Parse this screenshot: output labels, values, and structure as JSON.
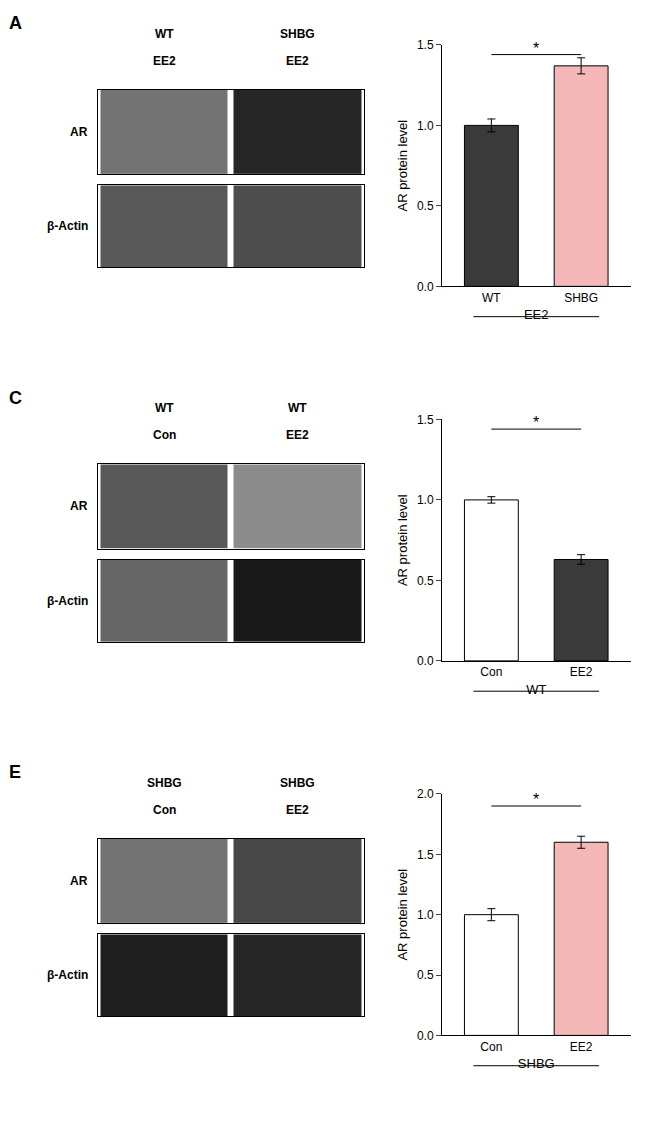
{
  "chart_data": [
    {
      "type": "bar",
      "title": "A",
      "categories": [
        "WT",
        "SHBG"
      ],
      "values": [
        1.0,
        1.37
      ],
      "errors": [
        0.04,
        0.05
      ],
      "colors": [
        "#3a3a3a",
        "#f4b8b8"
      ],
      "ylabel": "AR protein level",
      "xlabel": "EE2",
      "ylim": [
        0,
        1.5
      ],
      "yticks": [
        0.0,
        0.5,
        1.0,
        1.5
      ],
      "grid": false,
      "annotations": [
        {
          "text": "*",
          "from": "WT",
          "to": "SHBG",
          "y": 1.44
        }
      ],
      "blot": {
        "columns": [
          [
            "WT",
            "EE2"
          ],
          [
            "SHBG",
            "EE2"
          ]
        ],
        "zlim": [
          0,
          1
        ],
        "rows": [
          {
            "label": "AR",
            "cells": [
              0.55,
              0.85
            ]
          },
          {
            "label": "β-Actin",
            "cells": [
              0.65,
              0.7
            ]
          }
        ]
      }
    },
    {
      "type": "bar",
      "title": "C",
      "categories": [
        "Con",
        "EE2"
      ],
      "values": [
        1.0,
        0.63
      ],
      "errors": [
        0.02,
        0.03
      ],
      "colors": [
        "#ffffff",
        "#3a3a3a"
      ],
      "ylabel": "AR protein level",
      "xlabel": "WT",
      "ylim": [
        0,
        1.5
      ],
      "yticks": [
        0.0,
        0.5,
        1.0,
        1.5
      ],
      "grid": false,
      "annotations": [
        {
          "text": "*",
          "from": "Con",
          "to": "EE2",
          "y": 1.44
        }
      ],
      "blot": {
        "columns": [
          [
            "WT",
            "Con"
          ],
          [
            "WT",
            "EE2"
          ]
        ],
        "zlim": [
          0,
          1
        ],
        "rows": [
          {
            "label": "AR",
            "cells": [
              0.65,
              0.45
            ]
          },
          {
            "label": "β-Actin",
            "cells": [
              0.6,
              0.9
            ]
          }
        ]
      }
    },
    {
      "type": "bar",
      "title": "E",
      "categories": [
        "Con",
        "EE2"
      ],
      "values": [
        1.0,
        1.6
      ],
      "errors": [
        0.05,
        0.05
      ],
      "colors": [
        "#ffffff",
        "#f4b8b8"
      ],
      "ylabel": "AR protein level",
      "xlabel": "SHBG",
      "ylim": [
        0,
        2.0
      ],
      "yticks": [
        0.0,
        0.5,
        1.0,
        1.5,
        2.0
      ],
      "grid": false,
      "annotations": [
        {
          "text": "*",
          "from": "Con",
          "to": "EE2",
          "y": 1.9
        }
      ],
      "blot": {
        "columns": [
          [
            "SHBG",
            "Con"
          ],
          [
            "SHBG",
            "EE2"
          ]
        ],
        "zlim": [
          0,
          1
        ],
        "rows": [
          {
            "label": "AR",
            "cells": [
              0.55,
              0.72
            ]
          },
          {
            "label": "β-Actin",
            "cells": [
              0.88,
              0.85
            ]
          }
        ]
      }
    }
  ]
}
